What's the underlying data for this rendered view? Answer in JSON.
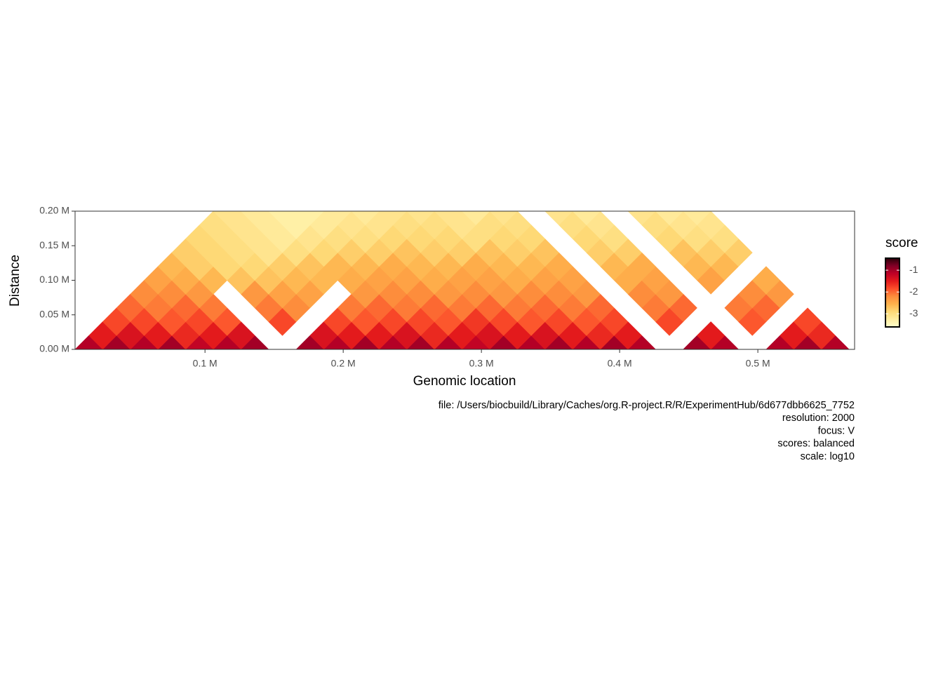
{
  "chart_data": {
    "type": "hic-triangle",
    "xlabel": "Genomic location",
    "ylabel": "Distance",
    "legend_title": "score",
    "caption": [
      "file: /Users/biocbuild/Library/Caches/org.R-project.R/R/ExperimentHub/6d677dbb6625_7752",
      "resolution: 2000",
      "focus: V",
      "scores: balanced",
      "scale: log10"
    ],
    "xlim": [
      6000,
      570000
    ],
    "ylim": [
      0,
      200000
    ],
    "xticks": [
      {
        "value": 100000,
        "label": "0.1 M"
      },
      {
        "value": 200000,
        "label": "0.2 M"
      },
      {
        "value": 300000,
        "label": "0.3 M"
      },
      {
        "value": 400000,
        "label": "0.4 M"
      },
      {
        "value": 500000,
        "label": "0.5 M"
      }
    ],
    "yticks": [
      {
        "value": 0,
        "label": "0.00 M"
      },
      {
        "value": 50000,
        "label": "0.05 M"
      },
      {
        "value": 100000,
        "label": "0.10 M"
      },
      {
        "value": 150000,
        "label": "0.15 M"
      },
      {
        "value": 200000,
        "label": "0.20 M"
      }
    ],
    "clim": [
      -3.6,
      -0.45
    ],
    "cticks": [
      -1,
      -2,
      -3
    ],
    "colorscale": [
      "#ffffcc",
      "#ffeda0",
      "#fed976",
      "#feb24c",
      "#fd8d3c",
      "#fc4e2a",
      "#e31a1c",
      "#bd0026",
      "#800026",
      "#2b0008"
    ],
    "bins": [
      6000,
      26000,
      46000,
      66000,
      86000,
      106000,
      126000,
      146000,
      166000,
      186000,
      206000,
      226000,
      246000,
      266000,
      286000,
      306000,
      326000,
      346000,
      366000,
      386000,
      406000,
      426000,
      446000,
      466000,
      486000,
      506000,
      526000,
      546000,
      566000
    ],
    "matrix": [
      [
        -1.1,
        -1.0,
        -1.1,
        -1.0,
        -1.2,
        -1.1,
        -1.0,
        null,
        -1.0,
        -1.1,
        -1.0,
        -1.1,
        -1.0,
        -1.1,
        -1.2,
        -1.0,
        -1.1,
        -1.0,
        -1.1,
        -1.0,
        -1.1,
        null,
        -1.0,
        -1.1,
        null,
        -1.1,
        -1.0,
        -1.1
      ],
      [
        -1.5,
        -1.4,
        -1.5,
        -1.6,
        -1.5,
        -1.4,
        null,
        null,
        -1.4,
        -1.5,
        -1.5,
        -1.4,
        -1.6,
        -1.5,
        -1.4,
        -1.5,
        -1.4,
        -1.5,
        -1.6,
        -1.5,
        null,
        null,
        -1.5,
        null,
        null,
        -1.5,
        -1.6
      ],
      [
        -1.8,
        -1.8,
        -1.9,
        -1.8,
        -1.9,
        null,
        -1.8,
        null,
        -1.8,
        -1.9,
        -1.8,
        -1.8,
        -1.9,
        -1.7,
        -1.8,
        -1.9,
        -1.8,
        -1.9,
        -1.8,
        null,
        -1.8,
        null,
        null,
        -1.9,
        null,
        -1.8
      ],
      [
        -2.0,
        -2.1,
        -2.0,
        -2.1,
        null,
        -2.1,
        -2.2,
        null,
        -2.1,
        -2.0,
        -2.1,
        -2.0,
        -2.1,
        -2.0,
        -2.1,
        -2.0,
        -2.1,
        -2.0,
        null,
        -2.1,
        -2.0,
        null,
        -2.1,
        -2.0,
        null
      ],
      [
        -2.2,
        -2.2,
        -2.3,
        null,
        -2.3,
        -2.4,
        -2.4,
        null,
        -2.3,
        -2.2,
        -2.2,
        -2.3,
        -2.2,
        -2.3,
        -2.2,
        -2.2,
        -2.3,
        null,
        -2.2,
        -2.3,
        null,
        null,
        -2.2,
        -2.3
      ],
      [
        -2.4,
        -2.5,
        -2.6,
        -2.7,
        -2.7,
        -2.6,
        -2.6,
        -2.5,
        -2.4,
        -2.4,
        -2.5,
        -2.4,
        -2.4,
        -2.5,
        -2.4,
        -2.4,
        null,
        -2.5,
        -2.4,
        null,
        -2.4,
        null,
        -2.5
      ],
      [
        -2.6,
        -2.8,
        -2.9,
        -2.9,
        -2.8,
        -2.7,
        -2.6,
        -2.6,
        -2.5,
        -2.6,
        -2.6,
        -2.5,
        -2.6,
        -2.6,
        -2.5,
        null,
        -2.6,
        -2.5,
        null,
        -2.6,
        -2.6,
        null
      ],
      [
        -2.8,
        -2.9,
        -3.0,
        -3.1,
        -3.0,
        -2.9,
        -2.8,
        -2.8,
        -2.7,
        -2.8,
        -2.8,
        -2.7,
        -2.8,
        -2.7,
        null,
        -2.8,
        -2.8,
        null,
        -2.7,
        -2.8,
        -2.8
      ],
      [
        -2.9,
        -3.0,
        -3.1,
        -3.2,
        -3.1,
        -3.0,
        -3.0,
        -2.9,
        -2.9,
        -2.9,
        -3.0,
        -2.9,
        -2.9,
        null,
        -2.9,
        -3.0,
        null,
        -2.9,
        -3.0,
        -3.0
      ],
      [
        -3.0,
        -3.1,
        -3.2,
        -3.3,
        -3.2,
        -3.1,
        -3.1,
        -3.0,
        -3.0,
        -3.1,
        -3.0,
        -3.0,
        null,
        -3.0,
        -3.1,
        null,
        -3.0,
        -3.1,
        -3.1
      ],
      [
        -3.1,
        -3.2,
        -3.3,
        -3.3,
        -3.2,
        -3.2,
        -3.1,
        -3.1,
        -3.1,
        -3.2,
        -3.1,
        null,
        -3.1,
        -3.2,
        null,
        -3.1,
        -3.2,
        -3.2
      ]
    ]
  }
}
